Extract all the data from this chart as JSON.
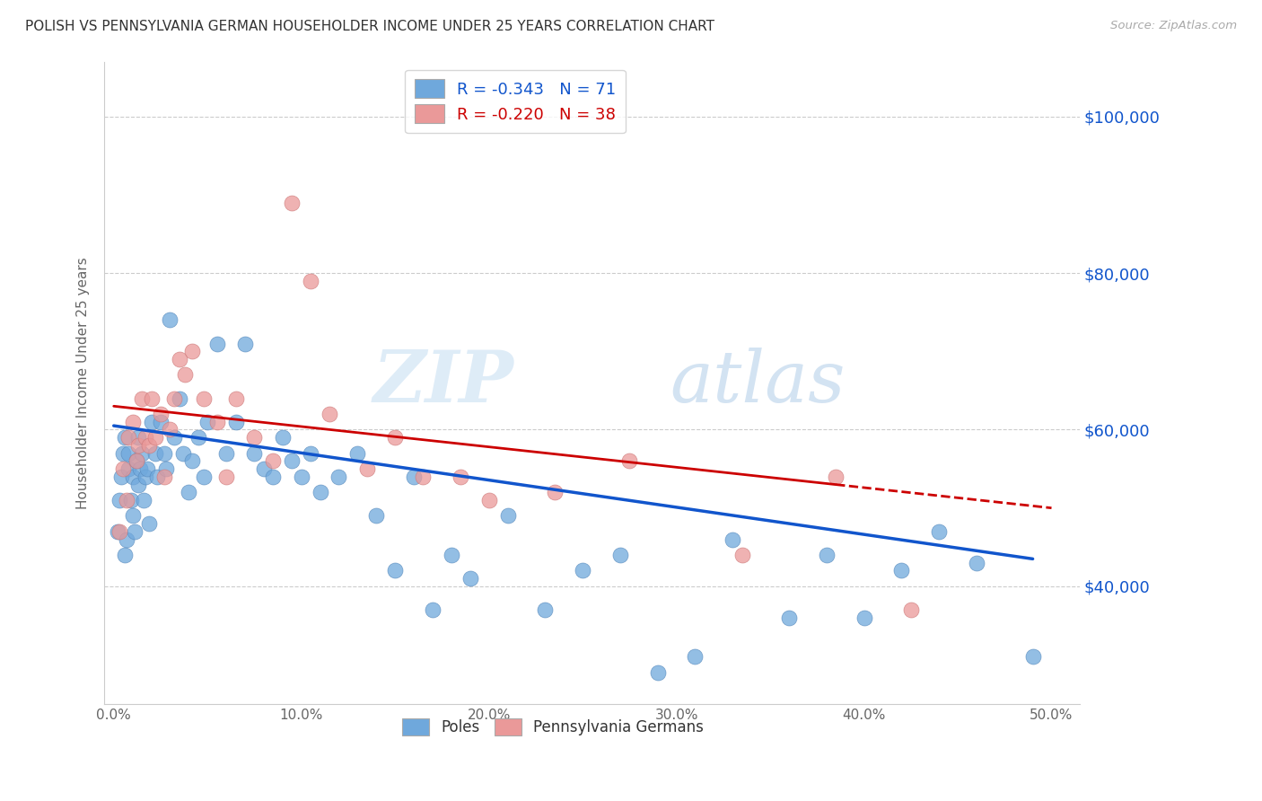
{
  "title": "POLISH VS PENNSYLVANIA GERMAN HOUSEHOLDER INCOME UNDER 25 YEARS CORRELATION CHART",
  "source": "Source: ZipAtlas.com",
  "xlabel_ticks": [
    "0.0%",
    "10.0%",
    "20.0%",
    "30.0%",
    "40.0%",
    "50.0%"
  ],
  "xlabel_vals": [
    0.0,
    0.1,
    0.2,
    0.3,
    0.4,
    0.5
  ],
  "ylabel": "Householder Income Under 25 years",
  "ylabel_ticks": [
    "$40,000",
    "$60,000",
    "$80,000",
    "$100,000"
  ],
  "ylabel_vals": [
    40000,
    60000,
    80000,
    100000
  ],
  "ylim": [
    25000,
    107000
  ],
  "xlim": [
    -0.005,
    0.515
  ],
  "poles_color": "#6fa8dc",
  "pa_german_color": "#ea9999",
  "trend_pole_color": "#1155cc",
  "trend_pa_color": "#cc0000",
  "watermark_zip": "ZIP",
  "watermark_atlas": "atlas",
  "legend_poles_label": "R = -0.343   N = 71",
  "legend_pa_label": "R = -0.220   N = 38",
  "poles_x": [
    0.002,
    0.003,
    0.004,
    0.005,
    0.006,
    0.006,
    0.007,
    0.008,
    0.008,
    0.009,
    0.01,
    0.01,
    0.011,
    0.012,
    0.013,
    0.013,
    0.014,
    0.015,
    0.016,
    0.017,
    0.018,
    0.019,
    0.02,
    0.022,
    0.023,
    0.025,
    0.027,
    0.028,
    0.03,
    0.032,
    0.035,
    0.037,
    0.04,
    0.042,
    0.045,
    0.048,
    0.05,
    0.055,
    0.06,
    0.065,
    0.07,
    0.075,
    0.08,
    0.085,
    0.09,
    0.095,
    0.1,
    0.105,
    0.11,
    0.12,
    0.13,
    0.14,
    0.15,
    0.16,
    0.17,
    0.18,
    0.19,
    0.21,
    0.23,
    0.25,
    0.27,
    0.29,
    0.31,
    0.33,
    0.36,
    0.38,
    0.4,
    0.42,
    0.44,
    0.46,
    0.49
  ],
  "poles_y": [
    47000,
    51000,
    54000,
    57000,
    44000,
    59000,
    46000,
    55000,
    57000,
    51000,
    54000,
    49000,
    47000,
    56000,
    59000,
    53000,
    55000,
    57000,
    51000,
    54000,
    55000,
    48000,
    61000,
    57000,
    54000,
    61000,
    57000,
    55000,
    74000,
    59000,
    64000,
    57000,
    52000,
    56000,
    59000,
    54000,
    61000,
    71000,
    57000,
    61000,
    71000,
    57000,
    55000,
    54000,
    59000,
    56000,
    54000,
    57000,
    52000,
    54000,
    57000,
    49000,
    42000,
    54000,
    37000,
    44000,
    41000,
    49000,
    37000,
    42000,
    44000,
    29000,
    31000,
    46000,
    36000,
    44000,
    36000,
    42000,
    47000,
    43000,
    31000
  ],
  "pa_x": [
    0.003,
    0.005,
    0.007,
    0.008,
    0.01,
    0.012,
    0.013,
    0.015,
    0.017,
    0.019,
    0.02,
    0.022,
    0.025,
    0.027,
    0.03,
    0.032,
    0.035,
    0.038,
    0.042,
    0.048,
    0.055,
    0.06,
    0.065,
    0.075,
    0.085,
    0.095,
    0.105,
    0.115,
    0.135,
    0.15,
    0.165,
    0.185,
    0.2,
    0.235,
    0.275,
    0.335,
    0.385,
    0.425
  ],
  "pa_y": [
    47000,
    55000,
    51000,
    59000,
    61000,
    56000,
    58000,
    64000,
    59000,
    58000,
    64000,
    59000,
    62000,
    54000,
    60000,
    64000,
    69000,
    67000,
    70000,
    64000,
    61000,
    54000,
    64000,
    59000,
    56000,
    89000,
    79000,
    62000,
    55000,
    59000,
    54000,
    54000,
    51000,
    52000,
    56000,
    44000,
    54000,
    37000
  ],
  "background_color": "#ffffff",
  "grid_color": "#cccccc",
  "bottom_legend_labels": [
    "Poles",
    "Pennsylvania Germans"
  ]
}
